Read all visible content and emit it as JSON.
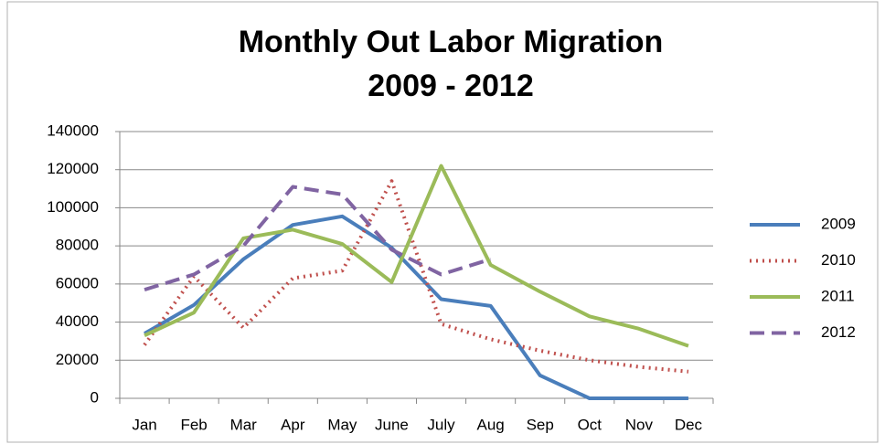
{
  "chart_data": {
    "type": "line",
    "title": [
      "Monthly Out Labor Migration",
      "2009 - 2012"
    ],
    "categories": [
      "Jan",
      "Feb",
      "Mar",
      "Apr",
      "May",
      "June",
      "July",
      "Aug",
      "Sep",
      "Oct",
      "Nov",
      "Dec"
    ],
    "series": [
      {
        "name": "2009",
        "color": "#4a7ebb",
        "dash": "solid",
        "values": [
          34000,
          49000,
          73000,
          91000,
          95500,
          79000,
          52000,
          48500,
          12000,
          0,
          0,
          0
        ]
      },
      {
        "name": "2010",
        "color": "#c0504d",
        "dash": "dotted",
        "values": [
          28000,
          64000,
          37000,
          63000,
          67000,
          114000,
          39000,
          31000,
          25000,
          20000,
          16500,
          14000
        ]
      },
      {
        "name": "2011",
        "color": "#9bbb59",
        "dash": "solid",
        "values": [
          33000,
          45000,
          84000,
          88500,
          81000,
          61000,
          122000,
          70000,
          56000,
          43000,
          36500,
          27500
        ]
      },
      {
        "name": "2012",
        "color": "#8064a2",
        "dash": "dashed",
        "values": [
          57000,
          65000,
          80000,
          111000,
          107000,
          78000,
          65000,
          73000,
          null,
          null,
          null,
          null
        ]
      }
    ],
    "ylim": [
      0,
      140000
    ],
    "yticks": [
      0,
      20000,
      40000,
      60000,
      80000,
      100000,
      120000,
      140000
    ],
    "grid": true,
    "legend": "right"
  }
}
